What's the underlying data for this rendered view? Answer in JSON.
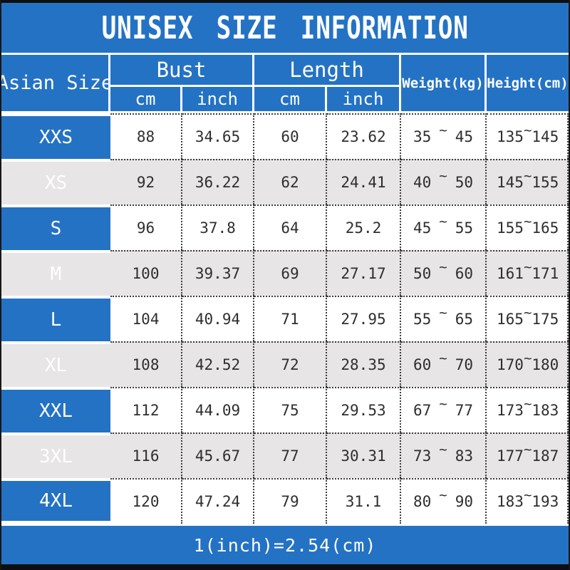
{
  "title": "UNISEX SIZE INFORMATION",
  "colors": {
    "accent_blue": "#2472c4",
    "alt_row_gray": "#e7e5e5",
    "frame_black": "#0e0e0e",
    "text_dark": "#2e2e2e",
    "text_white": "#ffffff"
  },
  "chart_data": {
    "type": "table",
    "title": "UNISEX SIZE INFORMATION",
    "corner_header": "Asian Size",
    "column_groups": [
      {
        "label": "Bust",
        "children": [
          "cm",
          "inch"
        ]
      },
      {
        "label": "Length",
        "children": [
          "cm",
          "inch"
        ]
      },
      {
        "label": "Weight(kg)",
        "children": []
      },
      {
        "label": "Height(cm)",
        "children": []
      }
    ],
    "range_separator": "~",
    "rows": [
      {
        "size": "XXS",
        "bust": {
          "cm": "88",
          "inch": "34.65"
        },
        "length": {
          "cm": "60",
          "inch": "23.62"
        },
        "weight_kg": {
          "min": "35",
          "max": "45"
        },
        "height_cm": {
          "min": "135",
          "max": "145"
        }
      },
      {
        "size": "XS",
        "bust": {
          "cm": "92",
          "inch": "36.22"
        },
        "length": {
          "cm": "62",
          "inch": "24.41"
        },
        "weight_kg": {
          "min": "40",
          "max": "50"
        },
        "height_cm": {
          "min": "145",
          "max": "155"
        }
      },
      {
        "size": "S",
        "bust": {
          "cm": "96",
          "inch": "37.8"
        },
        "length": {
          "cm": "64",
          "inch": "25.2"
        },
        "weight_kg": {
          "min": "45",
          "max": "55"
        },
        "height_cm": {
          "min": "155",
          "max": "165"
        }
      },
      {
        "size": "M",
        "bust": {
          "cm": "100",
          "inch": "39.37"
        },
        "length": {
          "cm": "69",
          "inch": "27.17"
        },
        "weight_kg": {
          "min": "50",
          "max": "60"
        },
        "height_cm": {
          "min": "161",
          "max": "171"
        }
      },
      {
        "size": "L",
        "bust": {
          "cm": "104",
          "inch": "40.94"
        },
        "length": {
          "cm": "71",
          "inch": "27.95"
        },
        "weight_kg": {
          "min": "55",
          "max": "65"
        },
        "height_cm": {
          "min": "165",
          "max": "175"
        }
      },
      {
        "size": "XL",
        "bust": {
          "cm": "108",
          "inch": "42.52"
        },
        "length": {
          "cm": "72",
          "inch": "28.35"
        },
        "weight_kg": {
          "min": "60",
          "max": "70"
        },
        "height_cm": {
          "min": "170",
          "max": "180"
        }
      },
      {
        "size": "XXL",
        "bust": {
          "cm": "112",
          "inch": "44.09"
        },
        "length": {
          "cm": "75",
          "inch": "29.53"
        },
        "weight_kg": {
          "min": "67",
          "max": "77"
        },
        "height_cm": {
          "min": "173",
          "max": "183"
        }
      },
      {
        "size": "3XL",
        "bust": {
          "cm": "116",
          "inch": "45.67"
        },
        "length": {
          "cm": "77",
          "inch": "30.31"
        },
        "weight_kg": {
          "min": "73",
          "max": "83"
        },
        "height_cm": {
          "min": "177",
          "max": "187"
        }
      },
      {
        "size": "4XL",
        "bust": {
          "cm": "120",
          "inch": "47.24"
        },
        "length": {
          "cm": "79",
          "inch": "31.1"
        },
        "weight_kg": {
          "min": "80",
          "max": "90"
        },
        "height_cm": {
          "min": "183",
          "max": "193"
        }
      }
    ],
    "footnote": "1(inch)=2.54(cm)"
  }
}
